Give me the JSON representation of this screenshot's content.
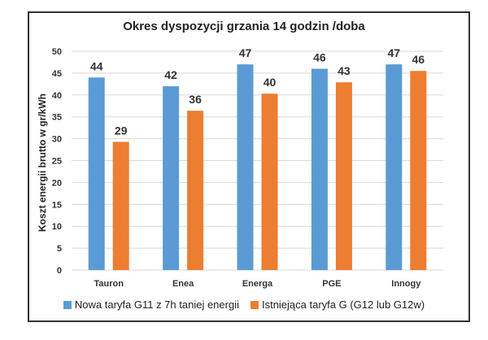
{
  "chart_data": {
    "type": "bar",
    "title": "Okres dyspozycji grzania 14 godzin /doba",
    "xlabel": "",
    "ylabel": "Koszt energii brutto w gr/kWh",
    "ylim": [
      0,
      50
    ],
    "yticks": [
      0,
      5,
      10,
      15,
      20,
      25,
      30,
      35,
      40,
      45,
      50
    ],
    "grid": true,
    "legend": "bottom",
    "categories": [
      "Tauron",
      "Enea",
      "Energa",
      "PGE",
      "Innogy"
    ],
    "series": [
      {
        "name": "Nowa taryfa G11 z 7h taniej energii",
        "color": "#5b9bd5",
        "values": [
          44,
          42,
          47,
          46,
          47
        ],
        "labels": [
          "44",
          "42",
          "47",
          "46",
          "47"
        ]
      },
      {
        "name": "Istniejąca taryfa G (G12 lub G12w)",
        "color": "#ed7d31",
        "values": [
          29.3,
          36.4,
          40.3,
          42.9,
          45.5
        ],
        "labels": [
          "29",
          "36",
          "40",
          "43",
          "46"
        ]
      }
    ]
  }
}
